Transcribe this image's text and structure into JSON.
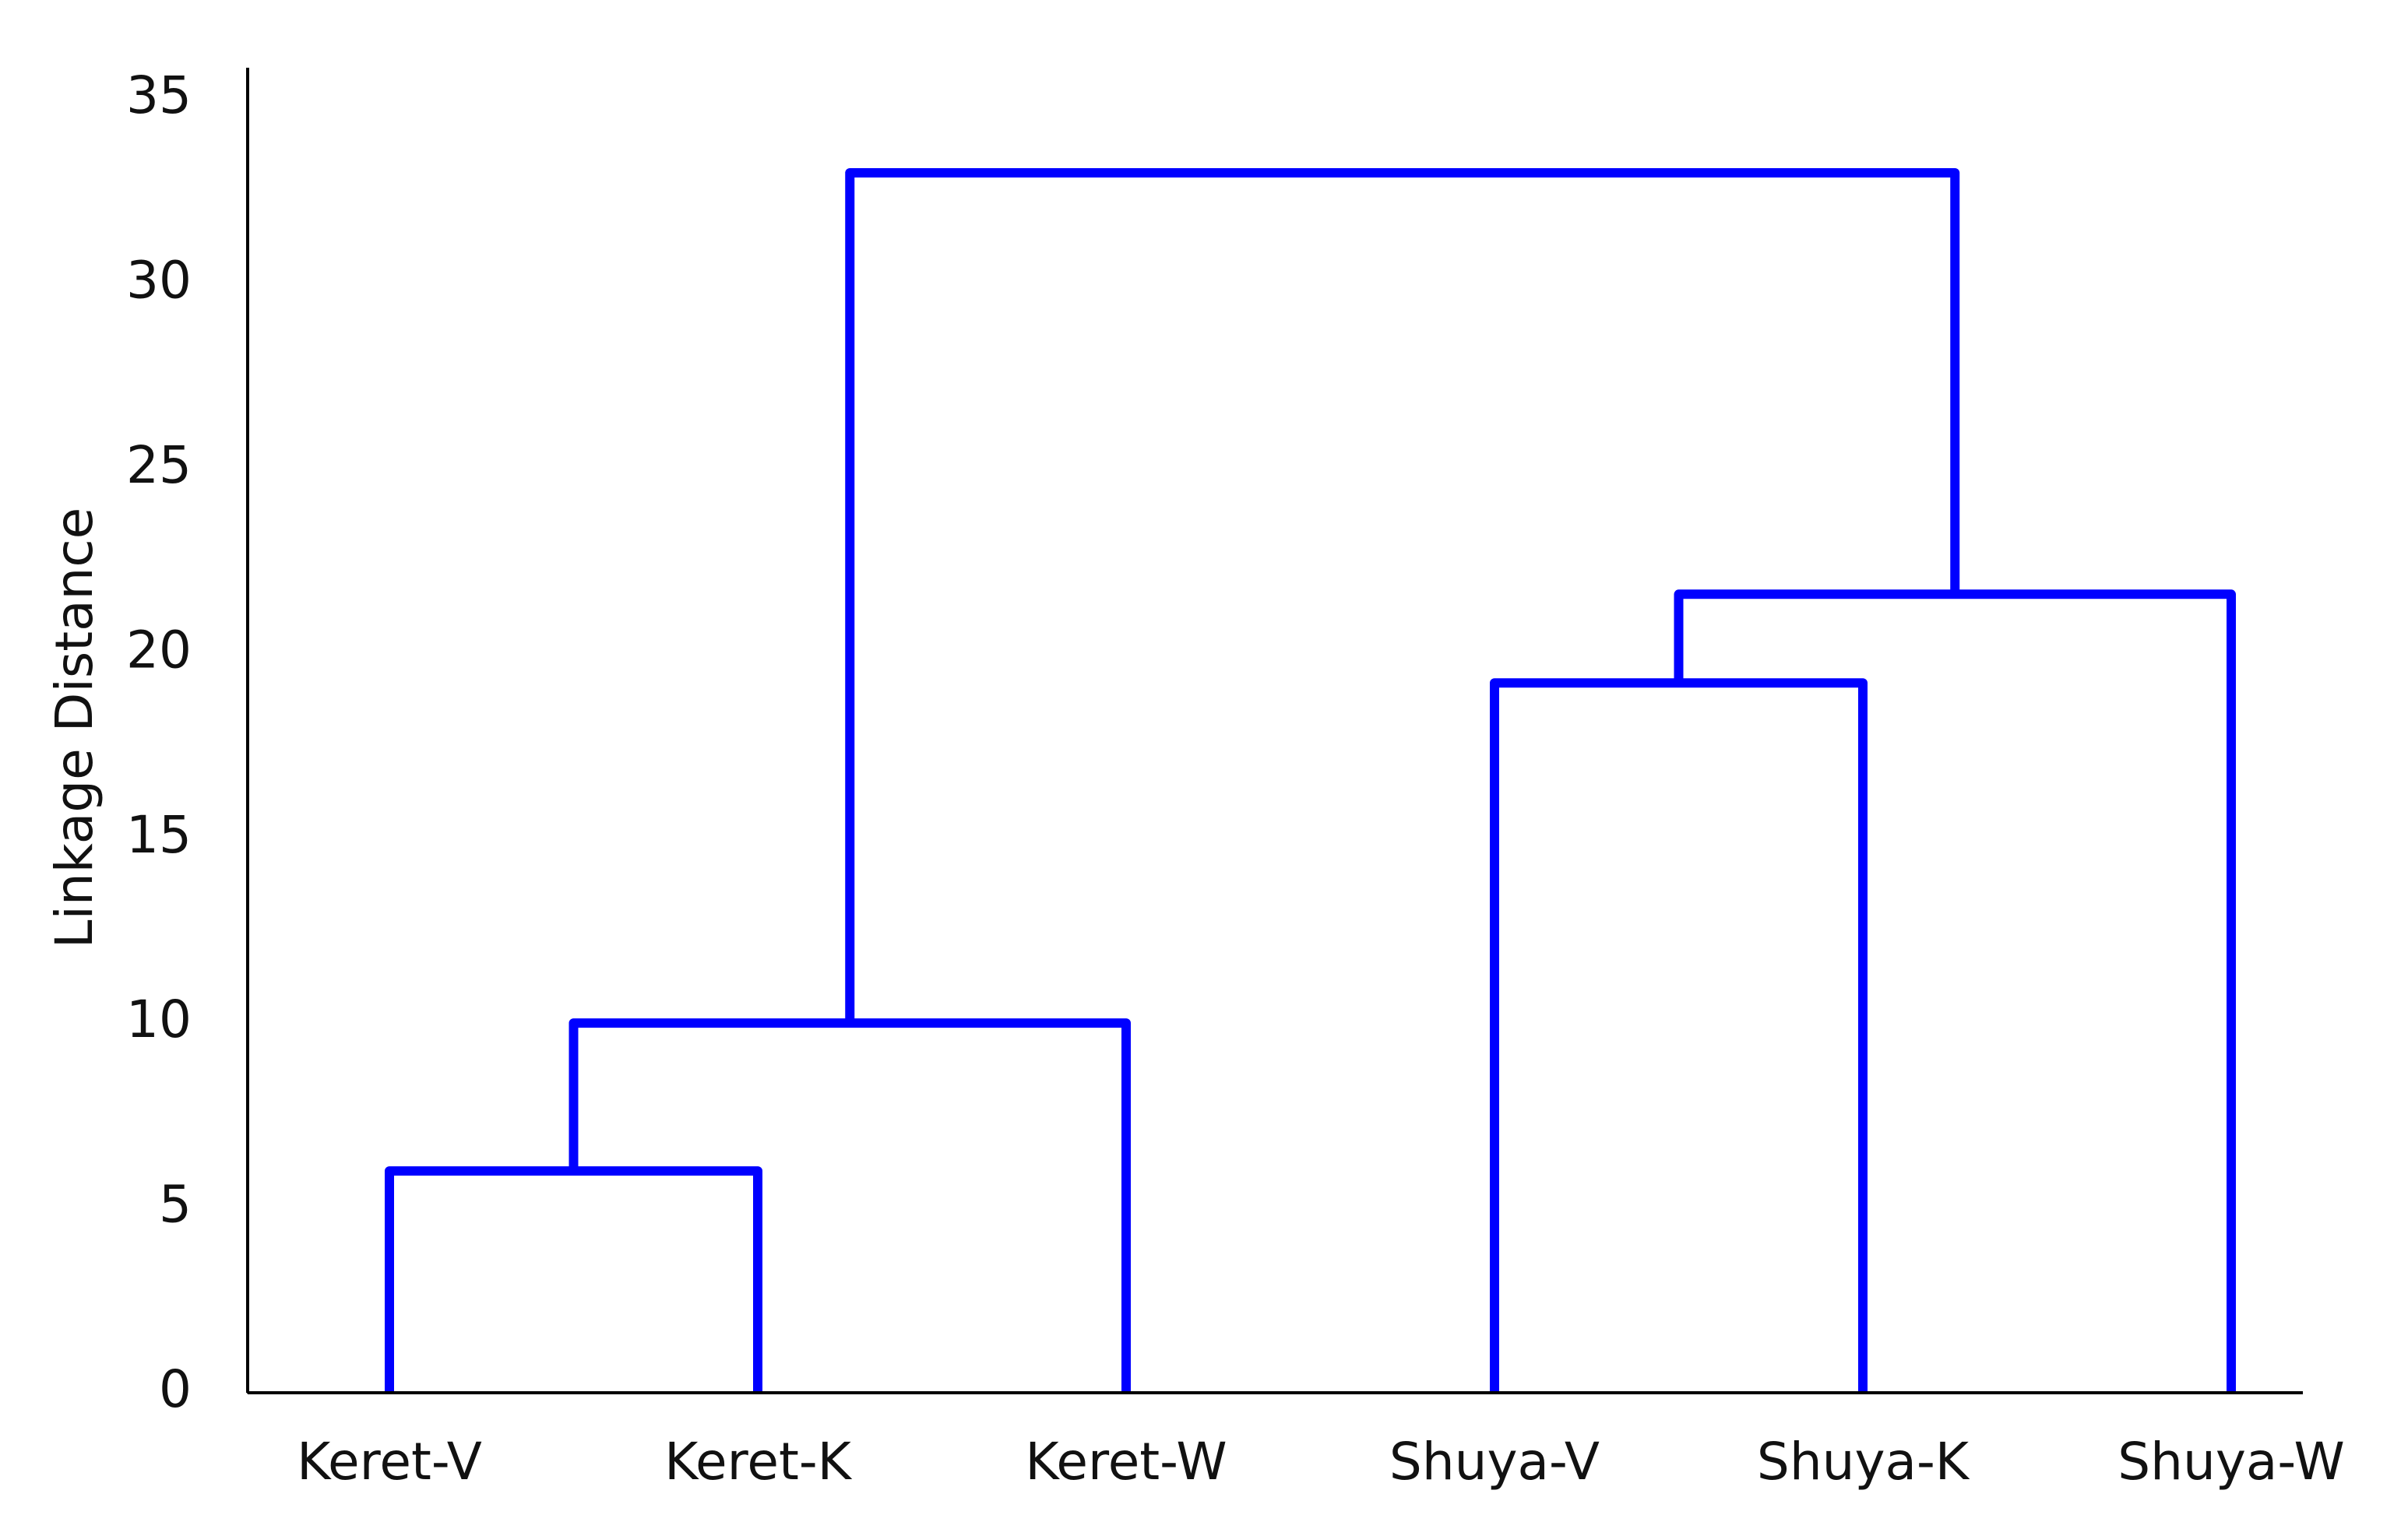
{
  "chart_data": {
    "type": "dendrogram",
    "y_label": "Linkage Distance",
    "categories": [
      "Keret-V",
      "Keret-K",
      "Keret-W",
      "Shuya-V",
      "Shuya-K",
      "Shuya-W"
    ],
    "merges": [
      {
        "children": [
          0,
          1
        ],
        "height": 6
      },
      {
        "children": [
          6,
          2
        ],
        "height": 10
      },
      {
        "children": [
          3,
          4
        ],
        "height": 19.2
      },
      {
        "children": [
          8,
          5
        ],
        "height": 21.6
      },
      {
        "children": [
          7,
          9
        ],
        "height": 33
      }
    ],
    "color": "#0000ff",
    "ylim": [
      0,
      35
    ],
    "yticks": [
      0,
      5,
      10,
      15,
      20,
      25,
      30,
      35
    ]
  }
}
